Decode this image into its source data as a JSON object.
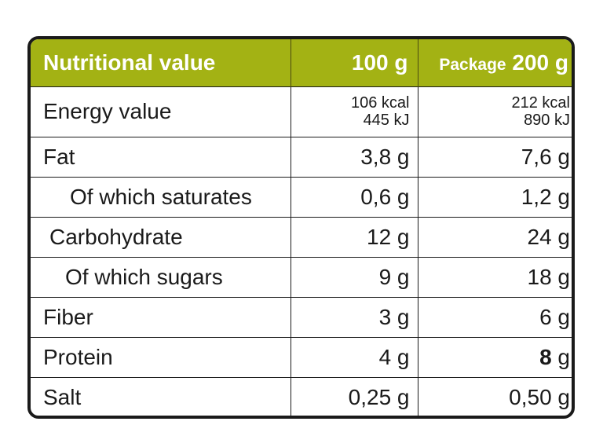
{
  "header": {
    "col1": "Nutritional value",
    "col2": "100 g",
    "col3_prefix": "Package",
    "col3_suffix": "200 g"
  },
  "rows": [
    {
      "name": "Energy value",
      "per100_line1": "106 kcal",
      "per100_line2": "445 kJ",
      "pkg_line1": "212 kcal",
      "pkg_line2": "890 kJ"
    },
    {
      "name": "Fat",
      "per100": "3,8 g",
      "pkg": "7,6 g"
    },
    {
      "name": "Of which saturates",
      "per100": "0,6 g",
      "pkg": "1,2 g"
    },
    {
      "name": "Carbohydrate",
      "per100": "12 g",
      "pkg": "24 g"
    },
    {
      "name": "Of which sugars",
      "per100": "9 g",
      "pkg": "18 g"
    },
    {
      "name": "Fiber",
      "per100": "3 g",
      "pkg": "6 g"
    },
    {
      "name": "Protein",
      "per100": "4 g",
      "pkg_bold": "8",
      "pkg_unit": "g"
    },
    {
      "name": "Salt",
      "per100": "0,25 g",
      "pkg": "0,50 g"
    }
  ],
  "colors": {
    "header_bg": "#a3b214",
    "header_text": "#ffffff",
    "border": "#1a1a1a"
  }
}
